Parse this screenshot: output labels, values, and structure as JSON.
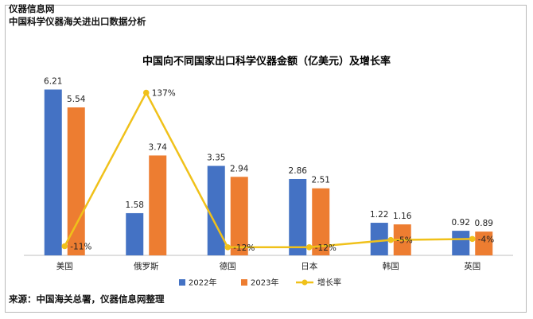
{
  "header": {
    "brand": "仪器信息网",
    "subtitle": "中国科学仪器海关进出口数据分析"
  },
  "footer": {
    "source": "来源：中国海关总署，仪器信息网整理"
  },
  "colors": {
    "series_2022": "#4472C4",
    "series_2023": "#ED7D31",
    "series_rate": "#F0C11A"
  },
  "chart_data": {
    "type": "bar",
    "title": "中国向不同国家出口科学仪器金额（亿美元）及增长率",
    "categories": [
      "美国",
      "俄罗斯",
      "德国",
      "日本",
      "韩国",
      "英国"
    ],
    "series": [
      {
        "name": "2022年",
        "type": "bar",
        "values": [
          6.21,
          1.58,
          3.35,
          2.86,
          1.22,
          0.92
        ],
        "labels": [
          "6.21",
          "1.58",
          "3.35",
          "2.86",
          "1.22",
          "0.92"
        ]
      },
      {
        "name": "2023年",
        "type": "bar",
        "values": [
          5.54,
          3.74,
          2.94,
          2.51,
          1.16,
          0.89
        ],
        "labels": [
          "5.54",
          "3.74",
          "2.94",
          "2.51",
          "1.16",
          "0.89"
        ]
      },
      {
        "name": "增长率",
        "type": "line",
        "values": [
          -11,
          137,
          -12,
          -12,
          -5,
          -4
        ],
        "labels": [
          "-11%",
          "137%",
          "-12%",
          "-12%",
          "-5%",
          "-4%"
        ]
      }
    ],
    "ylim": [
      0,
      7
    ],
    "rate_range": [
      -20,
      150
    ],
    "legend_position": "bottom",
    "grid": false
  }
}
